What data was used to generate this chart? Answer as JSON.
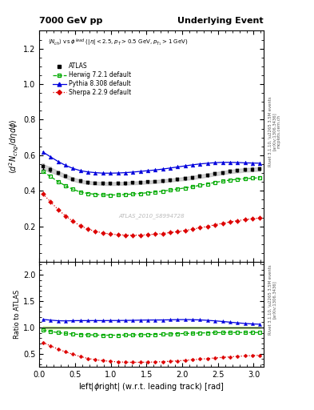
{
  "title_left": "7000 GeV pp",
  "title_right": "Underlying Event",
  "xlabel": "left|\\u03d5right| (w.r.t. leading track) [rad]",
  "ylabel_main": "\\u27e8d\\u00b2 N_{chg}/d\\u03b7d\\u03d5\\u27e9",
  "ylabel_ratio": "Ratio to ATLAS",
  "watermark": "ATLAS_2010_S8994728",
  "right_label_1": "Rivet 3.1.10, \\u2265 3.5M events",
  "right_label_2": "[arXiv:1306.3436]",
  "right_label_3": "mcplots.cern.ch",
  "xlim": [
    0,
    3.14159
  ],
  "ylim_main": [
    0.0,
    1.3
  ],
  "ylim_ratio": [
    0.25,
    2.25
  ],
  "yticks_main": [
    0.2,
    0.4,
    0.6,
    0.8,
    1.0,
    1.2
  ],
  "yticks_ratio": [
    0.5,
    1.0,
    1.5,
    2.0
  ],
  "atlas_x": [
    0.052,
    0.157,
    0.262,
    0.367,
    0.471,
    0.576,
    0.681,
    0.785,
    0.89,
    0.995,
    1.1,
    1.204,
    1.309,
    1.414,
    1.518,
    1.623,
    1.728,
    1.833,
    1.937,
    2.042,
    2.147,
    2.251,
    2.356,
    2.461,
    2.565,
    2.67,
    2.775,
    2.88,
    2.984,
    3.089
  ],
  "atlas_y": [
    0.535,
    0.518,
    0.5,
    0.482,
    0.465,
    0.453,
    0.447,
    0.443,
    0.441,
    0.44,
    0.441,
    0.442,
    0.444,
    0.446,
    0.449,
    0.452,
    0.456,
    0.46,
    0.464,
    0.469,
    0.475,
    0.481,
    0.488,
    0.495,
    0.502,
    0.508,
    0.513,
    0.517,
    0.52,
    0.522
  ],
  "atlas_err": [
    0.015,
    0.013,
    0.011,
    0.01,
    0.009,
    0.009,
    0.008,
    0.008,
    0.008,
    0.008,
    0.008,
    0.008,
    0.008,
    0.008,
    0.008,
    0.008,
    0.008,
    0.008,
    0.008,
    0.009,
    0.009,
    0.009,
    0.009,
    0.009,
    0.009,
    0.009,
    0.01,
    0.01,
    0.01,
    0.01
  ],
  "herwig_x": [
    0.052,
    0.157,
    0.262,
    0.367,
    0.471,
    0.576,
    0.681,
    0.785,
    0.89,
    0.995,
    1.1,
    1.204,
    1.309,
    1.414,
    1.518,
    1.623,
    1.728,
    1.833,
    1.937,
    2.042,
    2.147,
    2.251,
    2.356,
    2.461,
    2.565,
    2.67,
    2.775,
    2.88,
    2.984,
    3.089
  ],
  "herwig_y": [
    0.508,
    0.48,
    0.452,
    0.428,
    0.408,
    0.393,
    0.385,
    0.38,
    0.377,
    0.376,
    0.377,
    0.379,
    0.382,
    0.385,
    0.389,
    0.393,
    0.398,
    0.404,
    0.41,
    0.416,
    0.423,
    0.431,
    0.439,
    0.447,
    0.454,
    0.46,
    0.465,
    0.468,
    0.471,
    0.473
  ],
  "pythia_x": [
    0.052,
    0.157,
    0.262,
    0.367,
    0.471,
    0.576,
    0.681,
    0.785,
    0.89,
    0.995,
    1.1,
    1.204,
    1.309,
    1.414,
    1.518,
    1.623,
    1.728,
    1.833,
    1.937,
    2.042,
    2.147,
    2.251,
    2.356,
    2.461,
    2.565,
    2.67,
    2.775,
    2.88,
    2.984,
    3.089
  ],
  "pythia_y": [
    0.618,
    0.591,
    0.565,
    0.543,
    0.526,
    0.513,
    0.506,
    0.502,
    0.499,
    0.499,
    0.5,
    0.502,
    0.505,
    0.509,
    0.513,
    0.517,
    0.522,
    0.528,
    0.534,
    0.54,
    0.546,
    0.551,
    0.555,
    0.558,
    0.56,
    0.56,
    0.559,
    0.557,
    0.556,
    0.555
  ],
  "sherpa_x": [
    0.052,
    0.157,
    0.262,
    0.367,
    0.471,
    0.576,
    0.681,
    0.785,
    0.89,
    0.995,
    1.1,
    1.204,
    1.309,
    1.414,
    1.518,
    1.623,
    1.728,
    1.833,
    1.937,
    2.042,
    2.147,
    2.251,
    2.356,
    2.461,
    2.565,
    2.67,
    2.775,
    2.88,
    2.984,
    3.089
  ],
  "sherpa_y": [
    0.382,
    0.338,
    0.295,
    0.259,
    0.228,
    0.203,
    0.184,
    0.172,
    0.163,
    0.157,
    0.153,
    0.151,
    0.15,
    0.151,
    0.153,
    0.156,
    0.16,
    0.165,
    0.17,
    0.177,
    0.184,
    0.192,
    0.2,
    0.209,
    0.217,
    0.225,
    0.232,
    0.238,
    0.243,
    0.247
  ],
  "atlas_color": "black",
  "herwig_color": "#00aa00",
  "pythia_color": "#0000dd",
  "sherpa_color": "#dd0000",
  "atlas_band_color": "#aaaaaa",
  "ratio_atlas_band_color": "#ccffcc",
  "ratio_herwig_band_color": "#ccffcc"
}
